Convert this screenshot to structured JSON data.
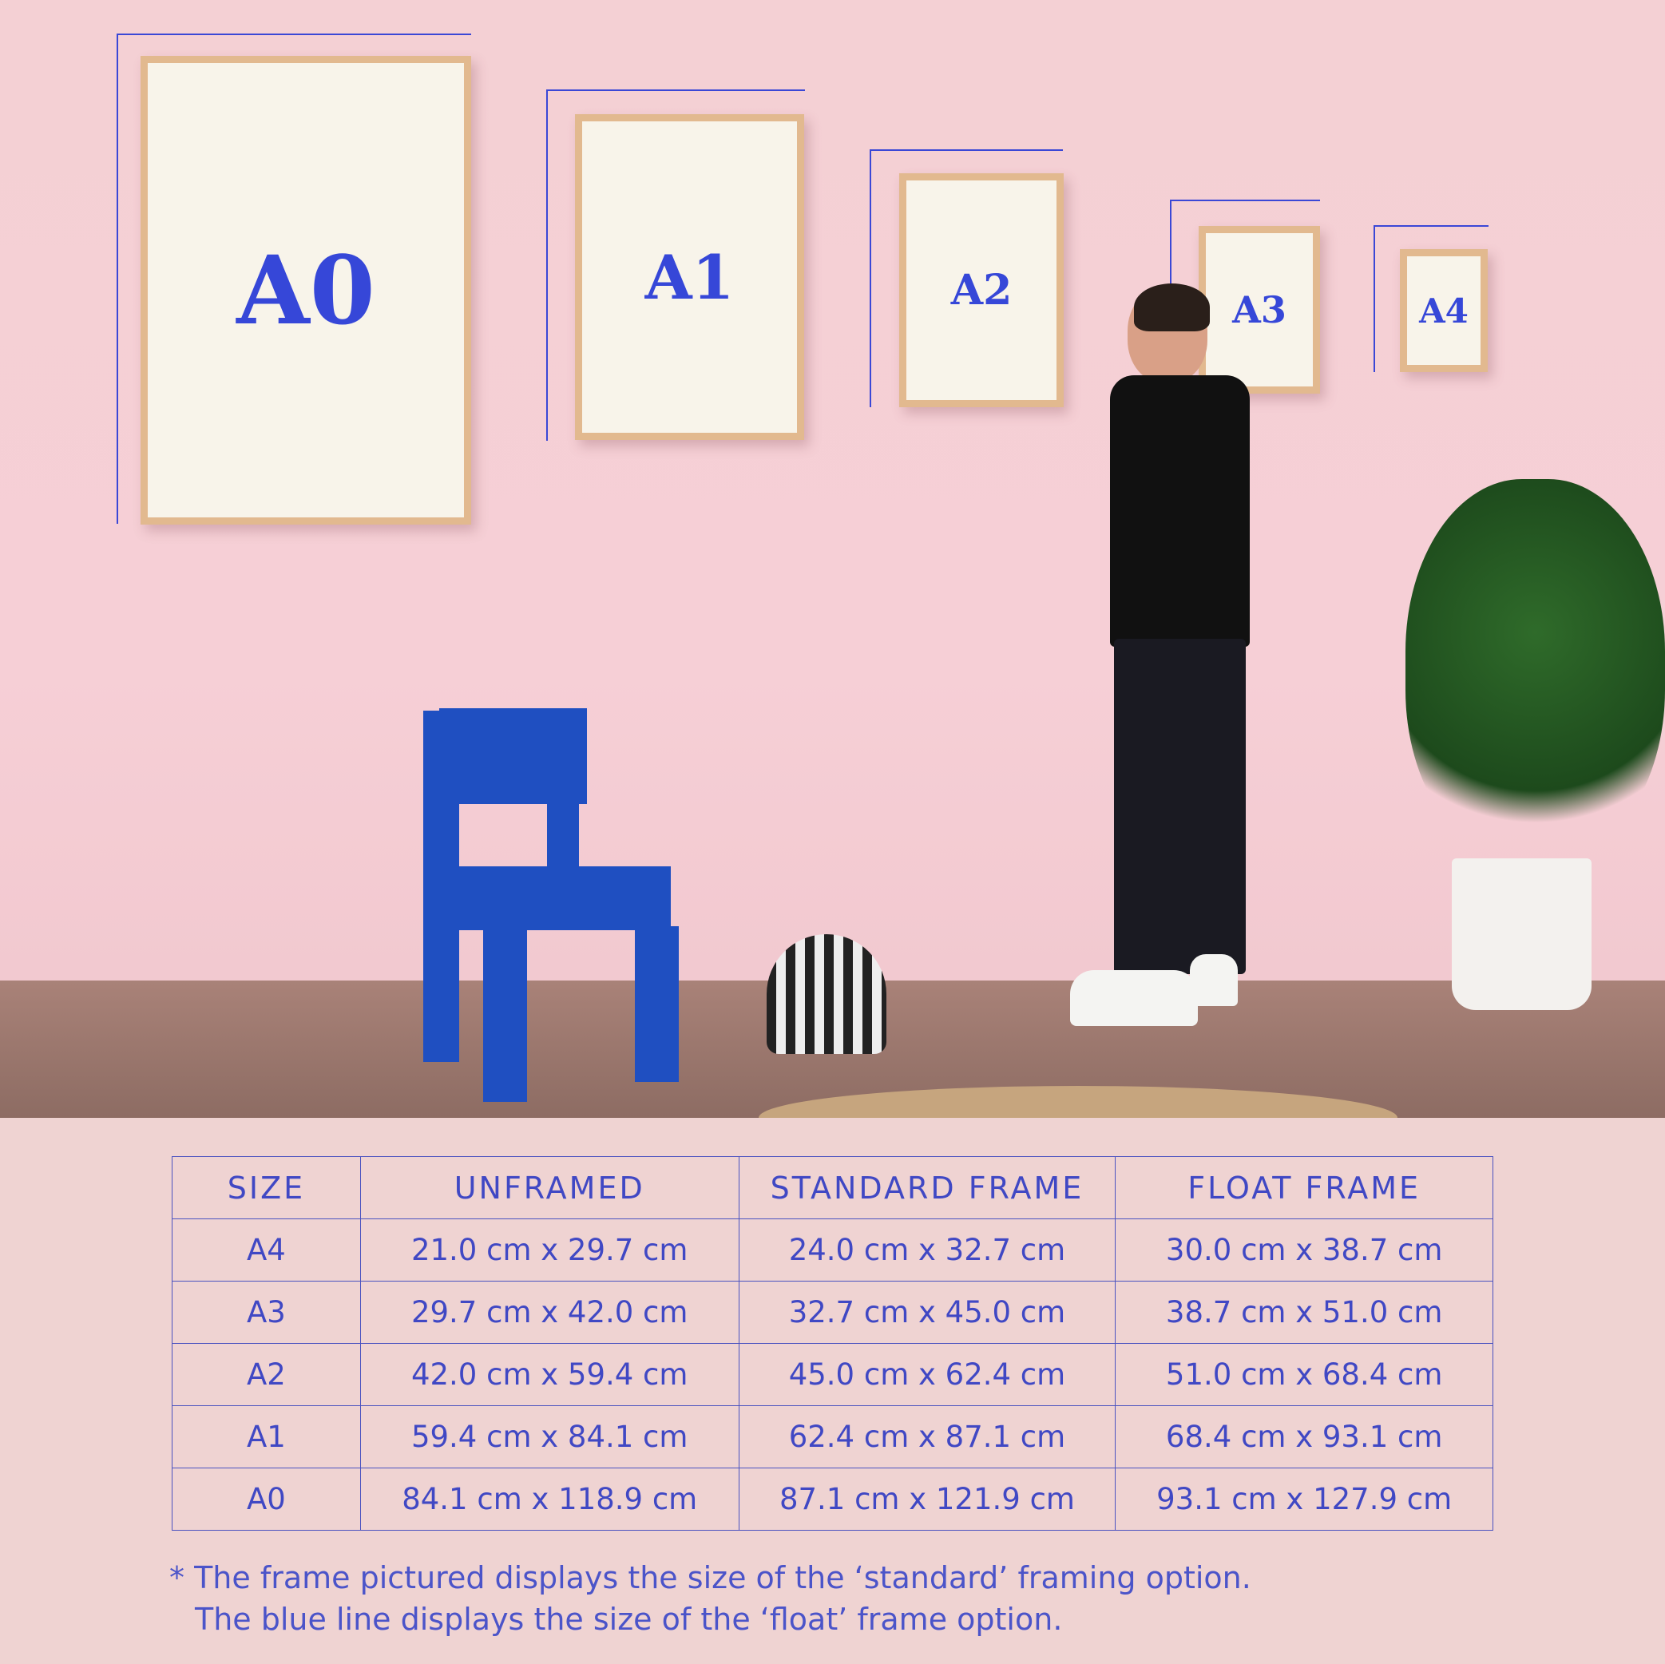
{
  "photo": {
    "frames": [
      {
        "label": "A0"
      },
      {
        "label": "A1"
      },
      {
        "label": "A2"
      },
      {
        "label": "A3"
      },
      {
        "label": "A4"
      }
    ]
  },
  "colors": {
    "accent": "#3a47d6",
    "background": "#efd3d2",
    "frame_wood": "#e2b98f"
  },
  "table": {
    "headers": [
      "SIZE",
      "UNFRAMED",
      "STANDARD FRAME",
      "FLOAT FRAME"
    ],
    "rows": [
      [
        "A4",
        "21.0 cm x 29.7 cm",
        "24.0 cm x 32.7 cm",
        "30.0 cm x 38.7 cm"
      ],
      [
        "A3",
        "29.7 cm x 42.0 cm",
        "32.7 cm x 45.0 cm",
        "38.7 cm x 51.0 cm"
      ],
      [
        "A2",
        "42.0 cm x 59.4 cm",
        "45.0 cm x 62.4 cm",
        "51.0 cm x 68.4 cm"
      ],
      [
        "A1",
        "59.4 cm x 84.1 cm",
        "62.4 cm x 87.1 cm",
        "68.4 cm x 93.1 cm"
      ],
      [
        "A0",
        "84.1 cm x 118.9 cm",
        "87.1 cm x 121.9 cm",
        "93.1 cm x 127.9 cm"
      ]
    ]
  },
  "note": {
    "line1": "* The frame pictured displays the size of the ‘standard’ framing option.",
    "line2": "The blue line displays the size of the ‘float’ frame option."
  }
}
